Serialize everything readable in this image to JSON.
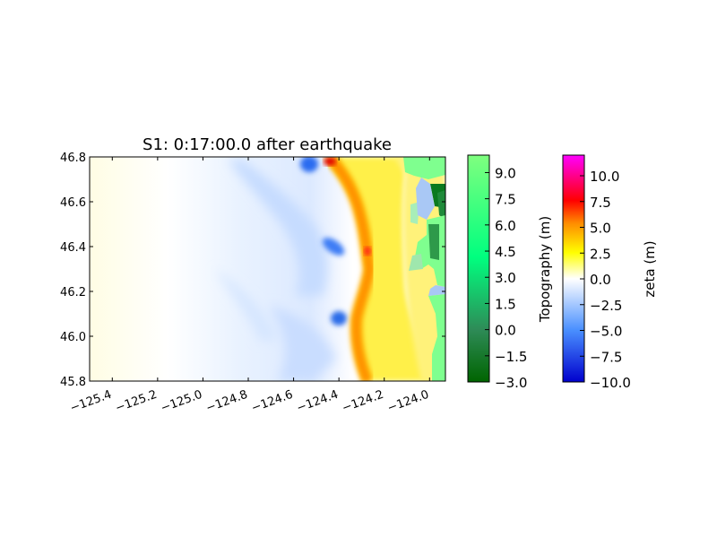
{
  "chart_data": {
    "type": "heatmap",
    "title": "S1: 0:17:00.0 after earthquake",
    "x_ticks": [
      "−125.4",
      "−125.2",
      "−125.0",
      "−124.8",
      "−124.6",
      "−124.4",
      "−124.2",
      "−124.0"
    ],
    "x_tick_values": [
      -125.4,
      -125.2,
      -125.0,
      -124.8,
      -124.6,
      -124.4,
      -124.2,
      -124.0
    ],
    "xlim": [
      -125.5,
      -123.93
    ],
    "y_ticks": [
      "45.8",
      "46.0",
      "46.2",
      "46.4",
      "46.6",
      "46.8"
    ],
    "y_tick_values": [
      45.8,
      46.0,
      46.2,
      46.4,
      46.6,
      46.8
    ],
    "ylim": [
      45.8,
      46.8
    ],
    "colorbars": [
      {
        "label": "Topography (m)",
        "ticks": [
          "9.0",
          "7.5",
          "6.0",
          "4.5",
          "3.0",
          "1.5",
          "0.0",
          "−1.5",
          "−3.0"
        ],
        "tick_values": [
          9.0,
          7.5,
          6.0,
          4.5,
          3.0,
          1.5,
          0.0,
          -1.5,
          -3.0
        ],
        "range": [
          -3.0,
          10.0
        ],
        "colors": [
          "#006400",
          "#2e8b57",
          "#00ff7f",
          "#7fff7f"
        ]
      },
      {
        "label": "zeta (m)",
        "ticks": [
          "10.0",
          "7.5",
          "5.0",
          "2.5",
          "0.0",
          "−2.5",
          "−5.0",
          "−7.5",
          "−10.0"
        ],
        "tick_values": [
          10.0,
          7.5,
          5.0,
          2.5,
          0.0,
          -2.5,
          -5.0,
          -7.5,
          -10.0
        ],
        "range": [
          -10.0,
          12.0
        ],
        "colors": [
          "#0000cd",
          "#4a90ff",
          "#ffffff",
          "#ffff00",
          "#ff8c00",
          "#ff0000",
          "#ff00ff"
        ]
      }
    ],
    "legend": "none",
    "grid": false
  }
}
